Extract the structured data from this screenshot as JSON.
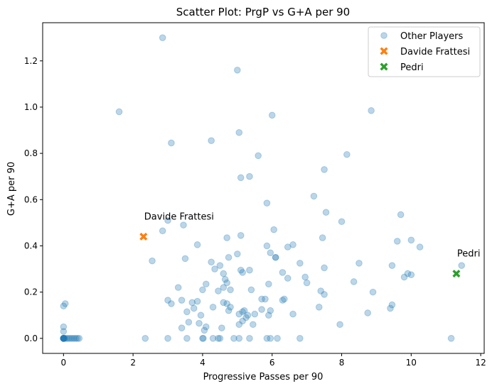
{
  "chart_data": {
    "type": "scatter",
    "title": "Scatter Plot: PrgP vs G+A per 90",
    "xlabel": "Progressive Passes per 90",
    "ylabel": "G+A per 90",
    "xlim": [
      -0.6,
      12.1
    ],
    "ylim": [
      -0.065,
      1.365
    ],
    "xticks": [
      0,
      2,
      4,
      6,
      8,
      10,
      12
    ],
    "yticks": [
      0.0,
      0.2,
      0.4,
      0.6,
      0.8,
      1.0,
      1.2
    ],
    "grid": false,
    "legend_position": "top-right",
    "colors": {
      "other": "#1f77b4",
      "frattesi": "#ff7f0e",
      "pedri": "#2ca02c"
    },
    "series": [
      {
        "name": "Other Players",
        "marker": "circle",
        "points": [
          [
            0,
            0
          ],
          [
            0,
            0
          ],
          [
            0,
            0
          ],
          [
            0,
            0
          ],
          [
            0,
            0
          ],
          [
            0,
            0
          ],
          [
            0,
            0
          ],
          [
            0.02,
            0
          ],
          [
            0.05,
            0
          ],
          [
            0.1,
            0
          ],
          [
            0.15,
            0
          ],
          [
            0.2,
            0
          ],
          [
            0.25,
            0
          ],
          [
            0.3,
            0
          ],
          [
            0.35,
            0
          ],
          [
            0.4,
            0
          ],
          [
            0.45,
            0
          ],
          [
            0,
            0.03
          ],
          [
            0,
            0.05
          ],
          [
            0,
            0.14
          ],
          [
            0.05,
            0.15
          ],
          [
            1.6,
            0.98
          ],
          [
            2.85,
            1.3
          ],
          [
            3.1,
            0.845
          ],
          [
            4.25,
            0.855
          ],
          [
            5,
            1.16
          ],
          [
            5.05,
            0.89
          ],
          [
            6,
            0.965
          ],
          [
            8.85,
            0.985
          ],
          [
            5.6,
            0.79
          ],
          [
            8.15,
            0.795
          ],
          [
            5.1,
            0.695
          ],
          [
            5.35,
            0.7
          ],
          [
            7.5,
            0.73
          ],
          [
            7.2,
            0.615
          ],
          [
            5.85,
            0.585
          ],
          [
            7.55,
            0.545
          ],
          [
            9.7,
            0.535
          ],
          [
            8,
            0.505
          ],
          [
            2.85,
            0.465
          ],
          [
            3,
            0.51
          ],
          [
            3.45,
            0.49
          ],
          [
            6.05,
            0.47
          ],
          [
            6.6,
            0.405
          ],
          [
            6.45,
            0.395
          ],
          [
            7.45,
            0.435
          ],
          [
            9.6,
            0.42
          ],
          [
            10,
            0.425
          ],
          [
            10.25,
            0.395
          ],
          [
            3.85,
            0.405
          ],
          [
            4.7,
            0.435
          ],
          [
            5.1,
            0.445
          ],
          [
            5.85,
            0.4
          ],
          [
            5.95,
            0.37
          ],
          [
            6.1,
            0.35
          ],
          [
            6.1,
            0.35
          ],
          [
            4.75,
            0.35
          ],
          [
            4.25,
            0.33
          ],
          [
            3.5,
            0.345
          ],
          [
            2.55,
            0.335
          ],
          [
            5,
            0.365
          ],
          [
            6.8,
            0.325
          ],
          [
            8.5,
            0.325
          ],
          [
            11.45,
            0.315
          ],
          [
            4.35,
            0.3
          ],
          [
            4.6,
            0.28
          ],
          [
            5.1,
            0.295
          ],
          [
            5.15,
            0.285
          ],
          [
            5.35,
            0.295
          ],
          [
            5.9,
            0.235
          ],
          [
            6.3,
            0.285
          ],
          [
            6.45,
            0.26
          ],
          [
            7.5,
            0.305
          ],
          [
            8.35,
            0.245
          ],
          [
            9.45,
            0.315
          ],
          [
            9.9,
            0.28
          ],
          [
            10,
            0.275
          ],
          [
            9.8,
            0.265
          ],
          [
            6.95,
            0.265
          ],
          [
            3.3,
            0.22
          ],
          [
            4,
            0.21
          ],
          [
            4.1,
            0.235
          ],
          [
            4.45,
            0.205
          ],
          [
            4.5,
            0.315
          ],
          [
            4.6,
            0.22
          ],
          [
            4.65,
            0.255
          ],
          [
            4.7,
            0.24
          ],
          [
            4.8,
            0.21
          ],
          [
            5.4,
            0.21
          ],
          [
            5.7,
            0.17
          ],
          [
            5.8,
            0.17
          ],
          [
            6.3,
            0.165
          ],
          [
            6.35,
            0.17
          ],
          [
            7,
            0.24
          ],
          [
            7.4,
            0.205
          ],
          [
            7.5,
            0.19
          ],
          [
            8.9,
            0.2
          ],
          [
            3,
            0.165
          ],
          [
            3.1,
            0.15
          ],
          [
            3.4,
            0.165
          ],
          [
            3.55,
            0.115
          ],
          [
            3.7,
            0.155
          ],
          [
            3.75,
            0.13
          ],
          [
            3.85,
            0.16
          ],
          [
            3.95,
            0.1
          ],
          [
            4.3,
            0.135
          ],
          [
            4.6,
            0.155
          ],
          [
            4.7,
            0.15
          ],
          [
            4.75,
            0.12
          ],
          [
            4.8,
            0.135
          ],
          [
            5.05,
            0.105
          ],
          [
            5.15,
            0.115
          ],
          [
            5.2,
            0.12
          ],
          [
            5.3,
            0.1
          ],
          [
            5.5,
            0.105
          ],
          [
            5.7,
            0.125
          ],
          [
            5.9,
            0.1
          ],
          [
            5.95,
            0.12
          ],
          [
            6.6,
            0.105
          ],
          [
            7.35,
            0.135
          ],
          [
            7.95,
            0.06
          ],
          [
            8.75,
            0.11
          ],
          [
            9.4,
            0.13
          ],
          [
            9.45,
            0.145
          ],
          [
            3.4,
            0.045
          ],
          [
            3.6,
            0.07
          ],
          [
            3.9,
            0.065
          ],
          [
            4.05,
            0.035
          ],
          [
            4.1,
            0.05
          ],
          [
            4.55,
            0.045
          ],
          [
            5.05,
            0.06
          ],
          [
            5.15,
            0.075
          ],
          [
            5.25,
            0.09
          ],
          [
            5.45,
            0.06
          ],
          [
            2.35,
            0
          ],
          [
            3,
            0
          ],
          [
            3.55,
            0
          ],
          [
            4,
            0
          ],
          [
            4.02,
            0
          ],
          [
            4.3,
            0
          ],
          [
            4.45,
            0
          ],
          [
            4.5,
            0
          ],
          [
            4.9,
            0
          ],
          [
            5.05,
            0
          ],
          [
            5.35,
            0
          ],
          [
            5.85,
            0
          ],
          [
            5.95,
            0
          ],
          [
            6.15,
            0
          ],
          [
            6.8,
            0
          ],
          [
            11.15,
            0
          ]
        ]
      },
      {
        "name": "Davide Frattesi",
        "marker": "x",
        "label": "Davide Frattesi",
        "points": [
          [
            2.3,
            0.44
          ]
        ]
      },
      {
        "name": "Pedri",
        "marker": "x",
        "label": "Pedri",
        "points": [
          [
            11.3,
            0.28
          ]
        ]
      }
    ]
  }
}
